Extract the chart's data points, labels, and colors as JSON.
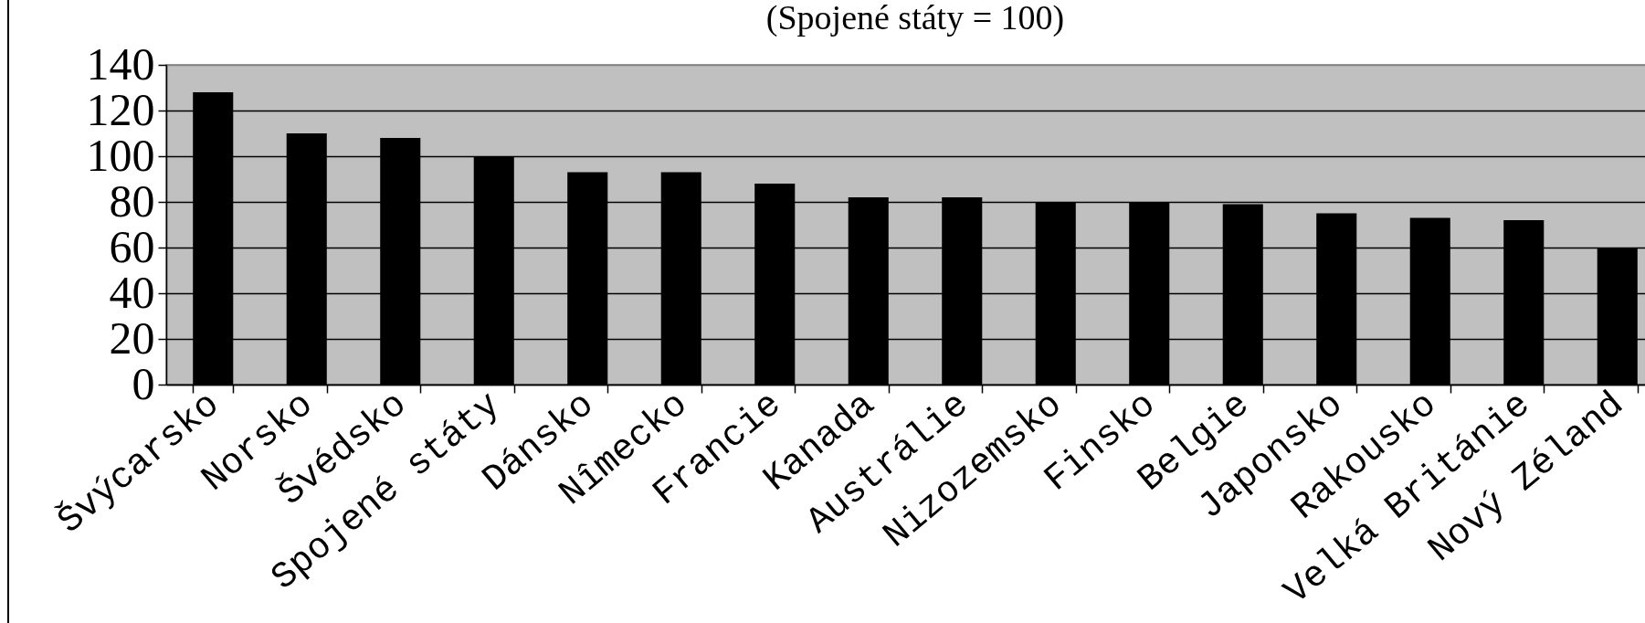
{
  "chart_data": {
    "type": "bar",
    "title": "(Spojené státy = 100)",
    "categories": [
      "Švýcarsko",
      "Norsko",
      "Švédsko",
      "Spojené státy",
      "Dánsko",
      "Nîmecko",
      "Francie",
      "Kanada",
      "Austrálie",
      "Nizozemsko",
      "Finsko",
      "Belgie",
      "Japonsko",
      "Rakousko",
      "Velká Británie",
      "Nový Zéland"
    ],
    "values": [
      128,
      110,
      108,
      100,
      93,
      93,
      88,
      82,
      82,
      80,
      80,
      79,
      75,
      73,
      72,
      60
    ],
    "color": "#000000",
    "ylim": [
      0,
      140
    ],
    "yticks": [
      0,
      20,
      40,
      60,
      80,
      100,
      120,
      140
    ],
    "grid": "y"
  }
}
